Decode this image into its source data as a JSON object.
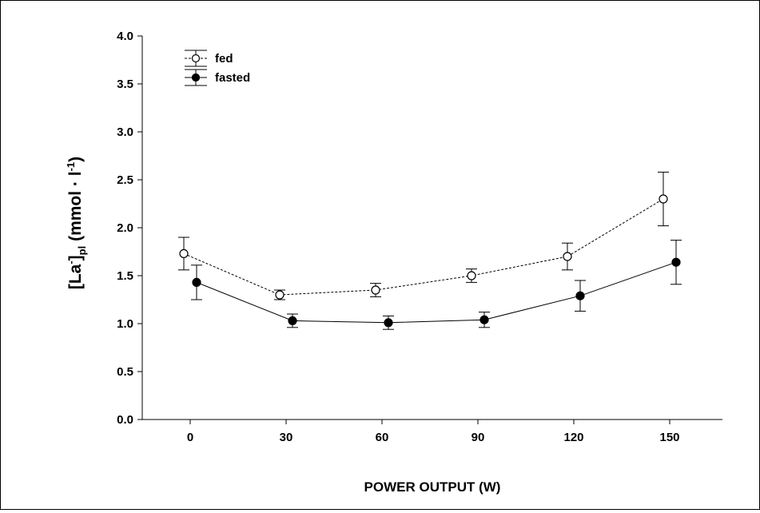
{
  "chart_data": {
    "type": "line",
    "title": "",
    "xlabel": "POWER OUTPUT (W)",
    "ylabel": {
      "main": "[La",
      "sup1": "-",
      "main2": "]",
      "sub": "pl",
      "unit": " (mmol · l",
      "sup2": "-1",
      "end": ")"
    },
    "x": [
      0,
      30,
      60,
      90,
      120,
      150
    ],
    "x_tick_labels": [
      "0",
      "30",
      "60",
      "90",
      "120",
      "150"
    ],
    "y_tick_labels": [
      "0.0",
      "0.5",
      "1.0",
      "1.5",
      "2.0",
      "2.5",
      "3.0",
      "3.5",
      "4.0"
    ],
    "y_ticks": [
      0.0,
      0.5,
      1.0,
      1.5,
      2.0,
      2.5,
      3.0,
      3.5,
      4.0
    ],
    "ylim": [
      0,
      4.0
    ],
    "xlim": [
      -10,
      165
    ],
    "grid": false,
    "legend_position": "top-left",
    "series": [
      {
        "name": "fed",
        "marker": "open-circle",
        "line": "dotted",
        "values": [
          1.73,
          1.3,
          1.35,
          1.5,
          1.7,
          2.3
        ],
        "errors": [
          0.17,
          0.05,
          0.07,
          0.07,
          0.14,
          0.28
        ]
      },
      {
        "name": "fasted",
        "marker": "filled-circle",
        "line": "solid",
        "values": [
          1.43,
          1.03,
          1.01,
          1.04,
          1.29,
          1.64
        ],
        "errors": [
          0.18,
          0.07,
          0.07,
          0.08,
          0.16,
          0.23
        ]
      }
    ]
  }
}
